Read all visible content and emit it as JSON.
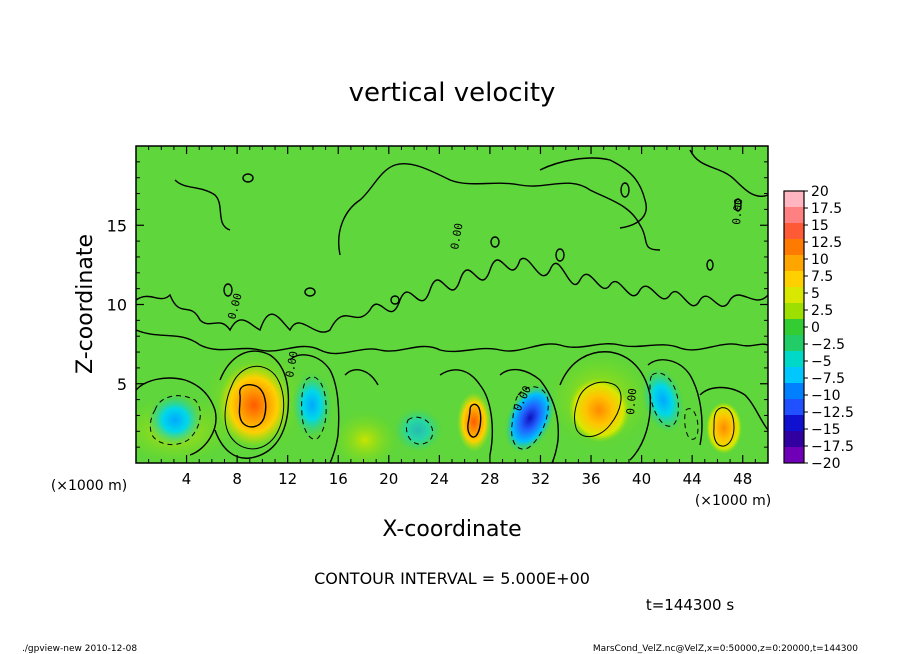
{
  "chart_data": {
    "type": "heatmap",
    "title": "vertical velocity",
    "xlabel": "X-coordinate",
    "ylabel": "Z-coordinate",
    "x_unit_label_left": "(×1000 m)",
    "x_unit_label_right": "(×1000 m)",
    "xlim": [
      0,
      50
    ],
    "ylim": [
      0,
      20
    ],
    "x_ticks": [
      4,
      8,
      12,
      16,
      20,
      24,
      28,
      32,
      36,
      40,
      44,
      48
    ],
    "y_ticks": [
      5,
      10,
      15
    ],
    "x_tick_labels": [
      "4",
      "8",
      "12",
      "16",
      "20",
      "24",
      "28",
      "32",
      "36",
      "40",
      "44",
      "48"
    ],
    "y_tick_labels": [
      "5",
      "10",
      "15"
    ],
    "colorbar": {
      "levels": [
        20,
        17.5,
        15,
        12.5,
        10,
        7.5,
        5,
        2.5,
        0,
        -2.5,
        -5,
        -7.5,
        -10,
        -12.5,
        -15,
        -17.5,
        -20
      ],
      "labels": [
        "20",
        "17.5",
        "15",
        "12.5",
        "10",
        "7.5",
        "5",
        "2.5",
        "0",
        "−2.5",
        "−5",
        "−7.5",
        "−10",
        "−12.5",
        "−15",
        "−17.5",
        "−20"
      ],
      "colors": [
        "#ffb6c1",
        "#ff8080",
        "#ff5a36",
        "#ff7a00",
        "#ffa500",
        "#ffd000",
        "#d8e800",
        "#9cdf00",
        "#33cc33",
        "#22cc66",
        "#00d8c8",
        "#00c8ff",
        "#0080ff",
        "#2050ff",
        "#1010d0",
        "#3000a0",
        "#7000b8"
      ]
    },
    "background_color": "#5ed63c",
    "cells": [
      {
        "x": 9.5,
        "z": 3.4,
        "value": 12.5
      },
      {
        "x": 9.5,
        "z": 3.0,
        "value": 7.5
      },
      {
        "x": 26.5,
        "z": 2.4,
        "value": 12.5
      },
      {
        "x": 30.8,
        "z": 3.0,
        "value": -15
      },
      {
        "x": 35.8,
        "z": 3.2,
        "value": 7.5
      },
      {
        "x": 46.0,
        "z": 2.5,
        "value": 7.5
      },
      {
        "x": 3.0,
        "z": 2.8,
        "value": -5
      },
      {
        "x": 14.0,
        "z": 4.0,
        "value": -5
      },
      {
        "x": 41.5,
        "z": 4.0,
        "value": -7.5
      },
      {
        "x": 23.0,
        "z": 2.2,
        "value": -2.5
      },
      {
        "x": 17.8,
        "z": 1.5,
        "value": 2.5
      }
    ],
    "contour_labels": [
      "0.00",
      "0.00",
      "0.00",
      "0.00",
      "0.00",
      "0.00"
    ]
  },
  "caption": "CONTOUR INTERVAL = 5.000E+00",
  "time_label": "t=144300 s",
  "footer_left": "./gpview-new  2010-12-08",
  "footer_right": "MarsCond_VelZ.nc@VelZ,x=0:50000,z=0:20000,t=144300"
}
